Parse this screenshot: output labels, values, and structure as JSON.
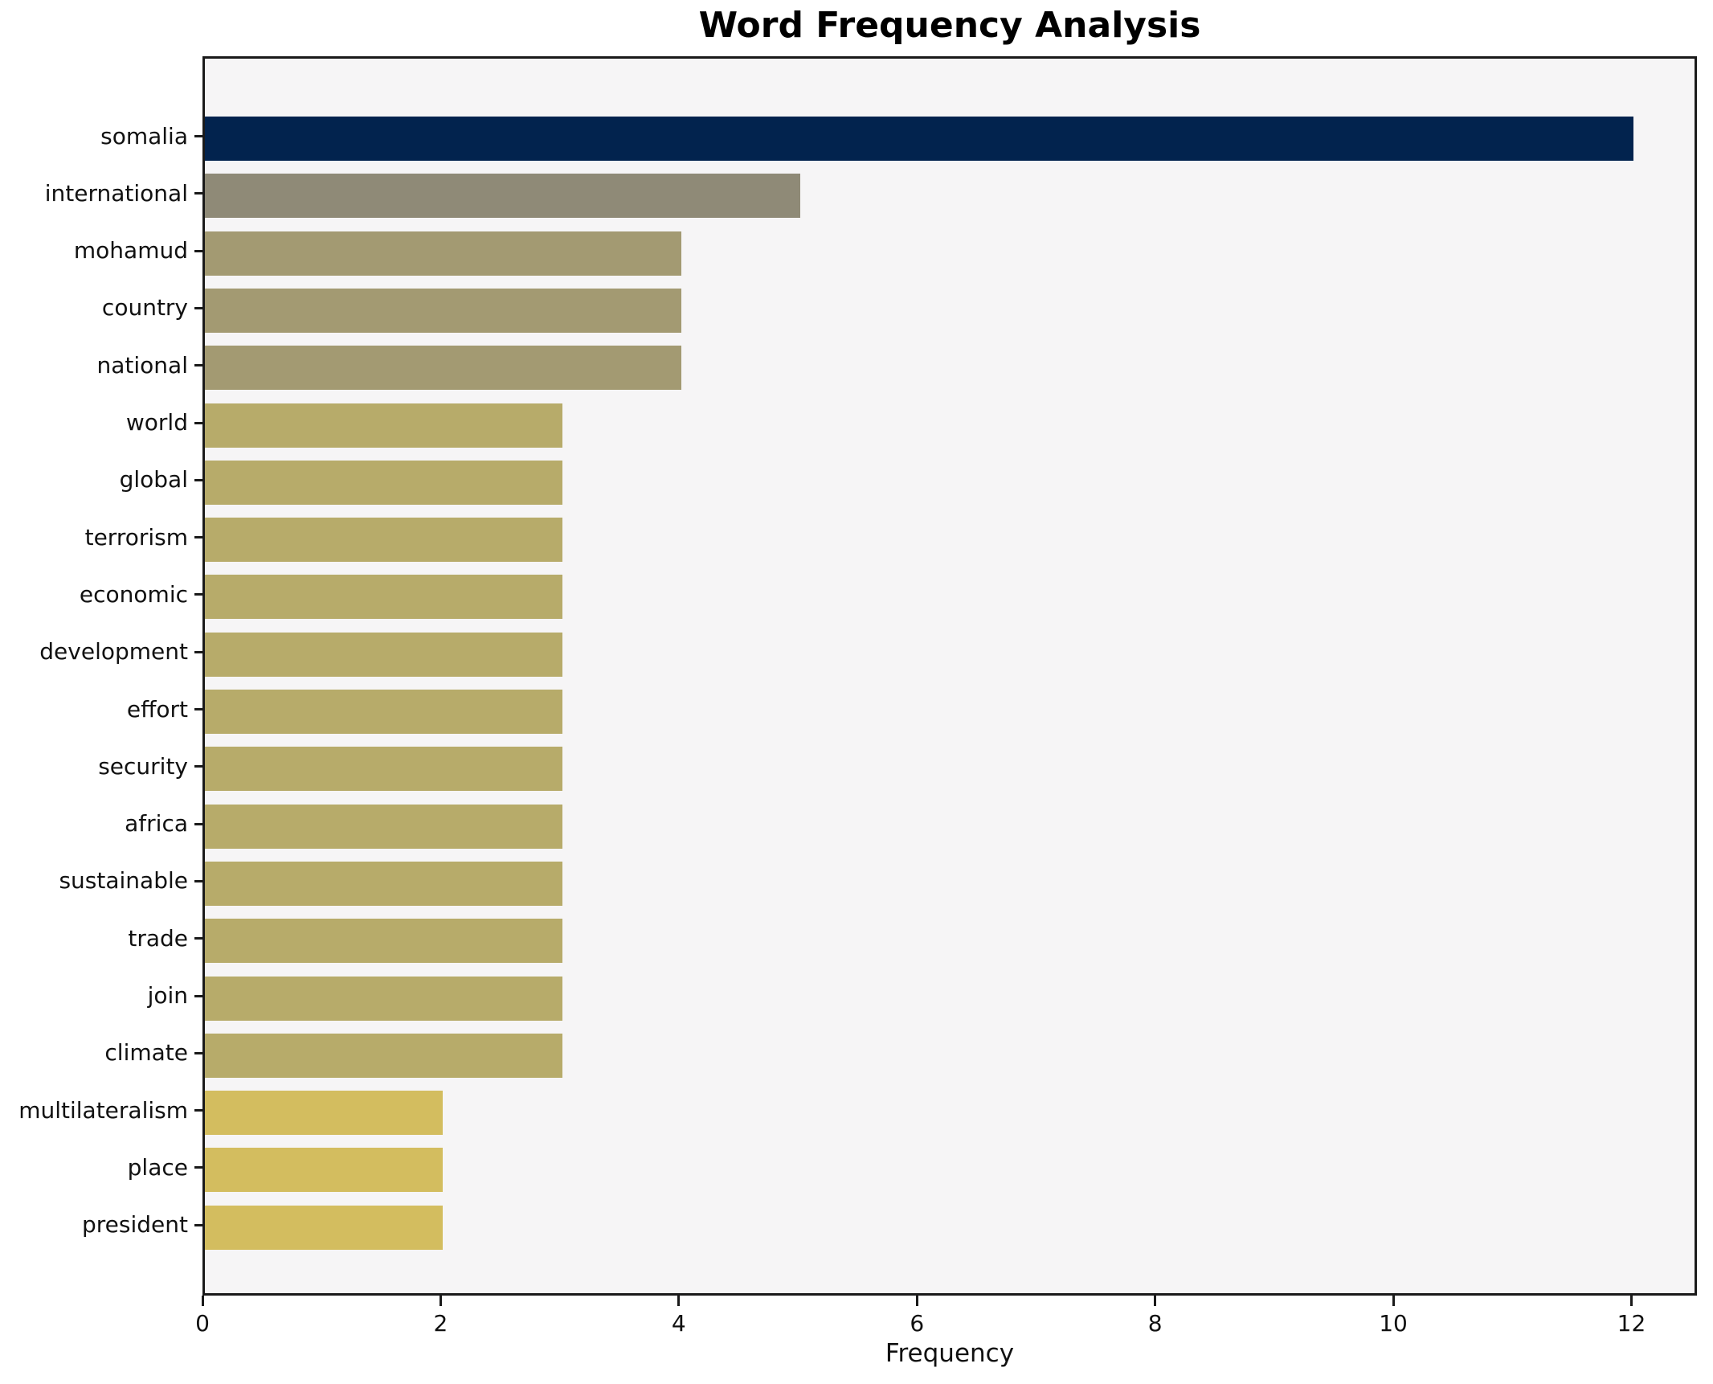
{
  "chart_data": {
    "type": "bar",
    "orientation": "horizontal",
    "title": "Word Frequency Analysis",
    "xlabel": "Frequency",
    "ylabel": "",
    "categories": [
      "somalia",
      "international",
      "mohamud",
      "country",
      "national",
      "world",
      "global",
      "terrorism",
      "economic",
      "development",
      "effort",
      "security",
      "africa",
      "sustainable",
      "trade",
      "join",
      "climate",
      "multilateralism",
      "place",
      "president"
    ],
    "values": [
      12,
      5,
      4,
      4,
      4,
      3,
      3,
      3,
      3,
      3,
      3,
      3,
      3,
      3,
      3,
      3,
      3,
      2,
      2,
      2
    ],
    "bar_colors": [
      "#02234e",
      "#8f8a77",
      "#a39a72",
      "#a39a72",
      "#a39a72",
      "#b7ab6a",
      "#b7ab6a",
      "#b7ab6a",
      "#b7ab6a",
      "#b7ab6a",
      "#b7ab6a",
      "#b7ab6a",
      "#b7ab6a",
      "#b7ab6a",
      "#b7ab6a",
      "#b7ab6a",
      "#b7ab6a",
      "#d3bd5f",
      "#d3bd5f",
      "#d3bd5f"
    ],
    "xticks": [
      "0",
      "2",
      "4",
      "6",
      "8",
      "10",
      "12"
    ],
    "xtick_values": [
      0,
      2,
      4,
      6,
      8,
      10,
      12
    ],
    "xlim": [
      0,
      12.55
    ],
    "grid": false,
    "legend": "none",
    "colors": {
      "plot_background": "#f6f5f6",
      "figure_background": "#ffffff",
      "axis_frame": "#1a1a1a",
      "text": "#111111",
      "value_color_map": {
        "12": "#02234e",
        "5": "#8f8a77",
        "4": "#a39a72",
        "3": "#b7ab6a",
        "2": "#d3bd5f"
      }
    }
  }
}
